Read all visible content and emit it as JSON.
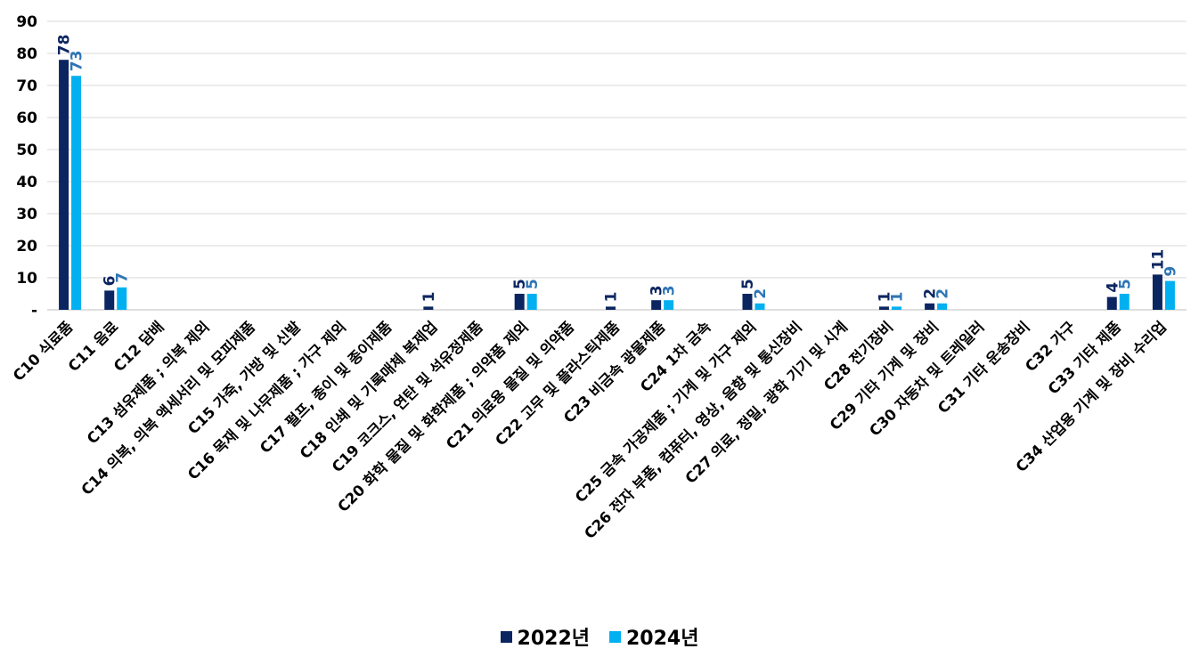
{
  "chart_data": {
    "type": "bar",
    "title": "",
    "xlabel": "",
    "ylabel": "",
    "ylim": [
      0,
      90
    ],
    "yticks": [
      0,
      10,
      20,
      30,
      40,
      50,
      60,
      70,
      80,
      90
    ],
    "ytick_labels": [
      "-",
      "10",
      "20",
      "30",
      "40",
      "50",
      "60",
      "70",
      "80",
      "90"
    ],
    "grid": true,
    "legend_position": "bottom",
    "categories": [
      "C10 식료품",
      "C11 음료",
      "C12 담배",
      "C13 섬유제품 ; 의복 제외",
      "C14 의복, 의복 액세서리 및 모피제품",
      "C15 가죽, 가방 및 신발",
      "C16 목재 및 나무제품 ; 가구 제외",
      "C17 펄프, 종이 및 종이제품",
      "C18 인쇄 및 기록매체 복제업",
      "C19 코크스, 연탄 및 석유정제품",
      "C20 화학 물질 및 화학제품 ; 의약품 제외",
      "C21 의료용 물질 및 의약품",
      "C22 고무 및 플라스틱제품",
      "C23 비금속 광물제품",
      "C24 1차 금속",
      "C25 금속 가공제품 ; 기계 및 가구 제외",
      "C26 전자 부품, 컴퓨터, 영상, 음향 및 통신장비",
      "C27 의료, 정밀, 광학 기기 및 시계",
      "C28 전기장비",
      "C29 기타 기계 및 장비",
      "C30 자동차 및 트레일러",
      "C31 기타 운송장비",
      "C32 가구",
      "C33 기타 제품",
      "C34 산업용 기계 및 장비 수리업"
    ],
    "series": [
      {
        "name": "2022년",
        "color": "#0b2560",
        "values": [
          78,
          6,
          null,
          null,
          null,
          null,
          null,
          null,
          1,
          null,
          5,
          null,
          1,
          3,
          null,
          5,
          null,
          null,
          1,
          2,
          null,
          null,
          null,
          4,
          11
        ]
      },
      {
        "name": "2024년",
        "color": "#00b0f0",
        "values": [
          73,
          7,
          null,
          null,
          null,
          null,
          null,
          null,
          null,
          null,
          5,
          null,
          null,
          3,
          null,
          2,
          null,
          null,
          1,
          2,
          null,
          null,
          null,
          5,
          9
        ]
      }
    ]
  },
  "colors": {
    "series_2022": "#0b2560",
    "series_2024": "#00b0f0",
    "label_2024": "#2e75b6",
    "grid": "#d9d9d9"
  }
}
